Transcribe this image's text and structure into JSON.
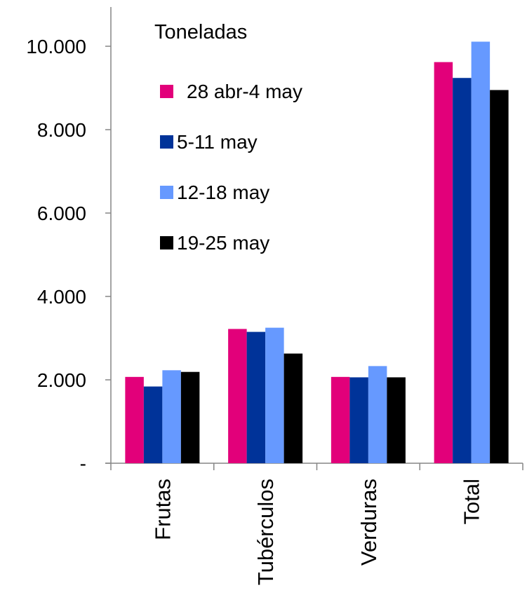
{
  "chart_data": {
    "type": "bar",
    "title": "Toneladas",
    "xlabel": "",
    "ylabel": "",
    "categories": [
      "Frutas",
      "Tubérculos",
      "Verduras",
      "Total"
    ],
    "series": [
      {
        "name": "28 abr-4 may",
        "color": "#e2007a",
        "values": [
          2070,
          3220,
          2070,
          9620
        ]
      },
      {
        "name": "5-11 may",
        "color": "#003399",
        "values": [
          1840,
          3150,
          2060,
          9240
        ]
      },
      {
        "name": "12-18 may",
        "color": "#6699ff",
        "values": [
          2230,
          3250,
          2330,
          10110
        ]
      },
      {
        "name": "19-25 may",
        "color": "#000000",
        "values": [
          2190,
          2630,
          2060,
          8950
        ]
      }
    ],
    "ylim": [
      0,
      10000
    ],
    "yticks": [
      0,
      2000,
      4000,
      6000,
      8000,
      10000
    ],
    "ytick_labels": [
      "-",
      "2.000",
      "4.000",
      "6.000",
      "8.000",
      "10.000"
    ],
    "grid": false,
    "legend_position": "top-left-inside"
  }
}
